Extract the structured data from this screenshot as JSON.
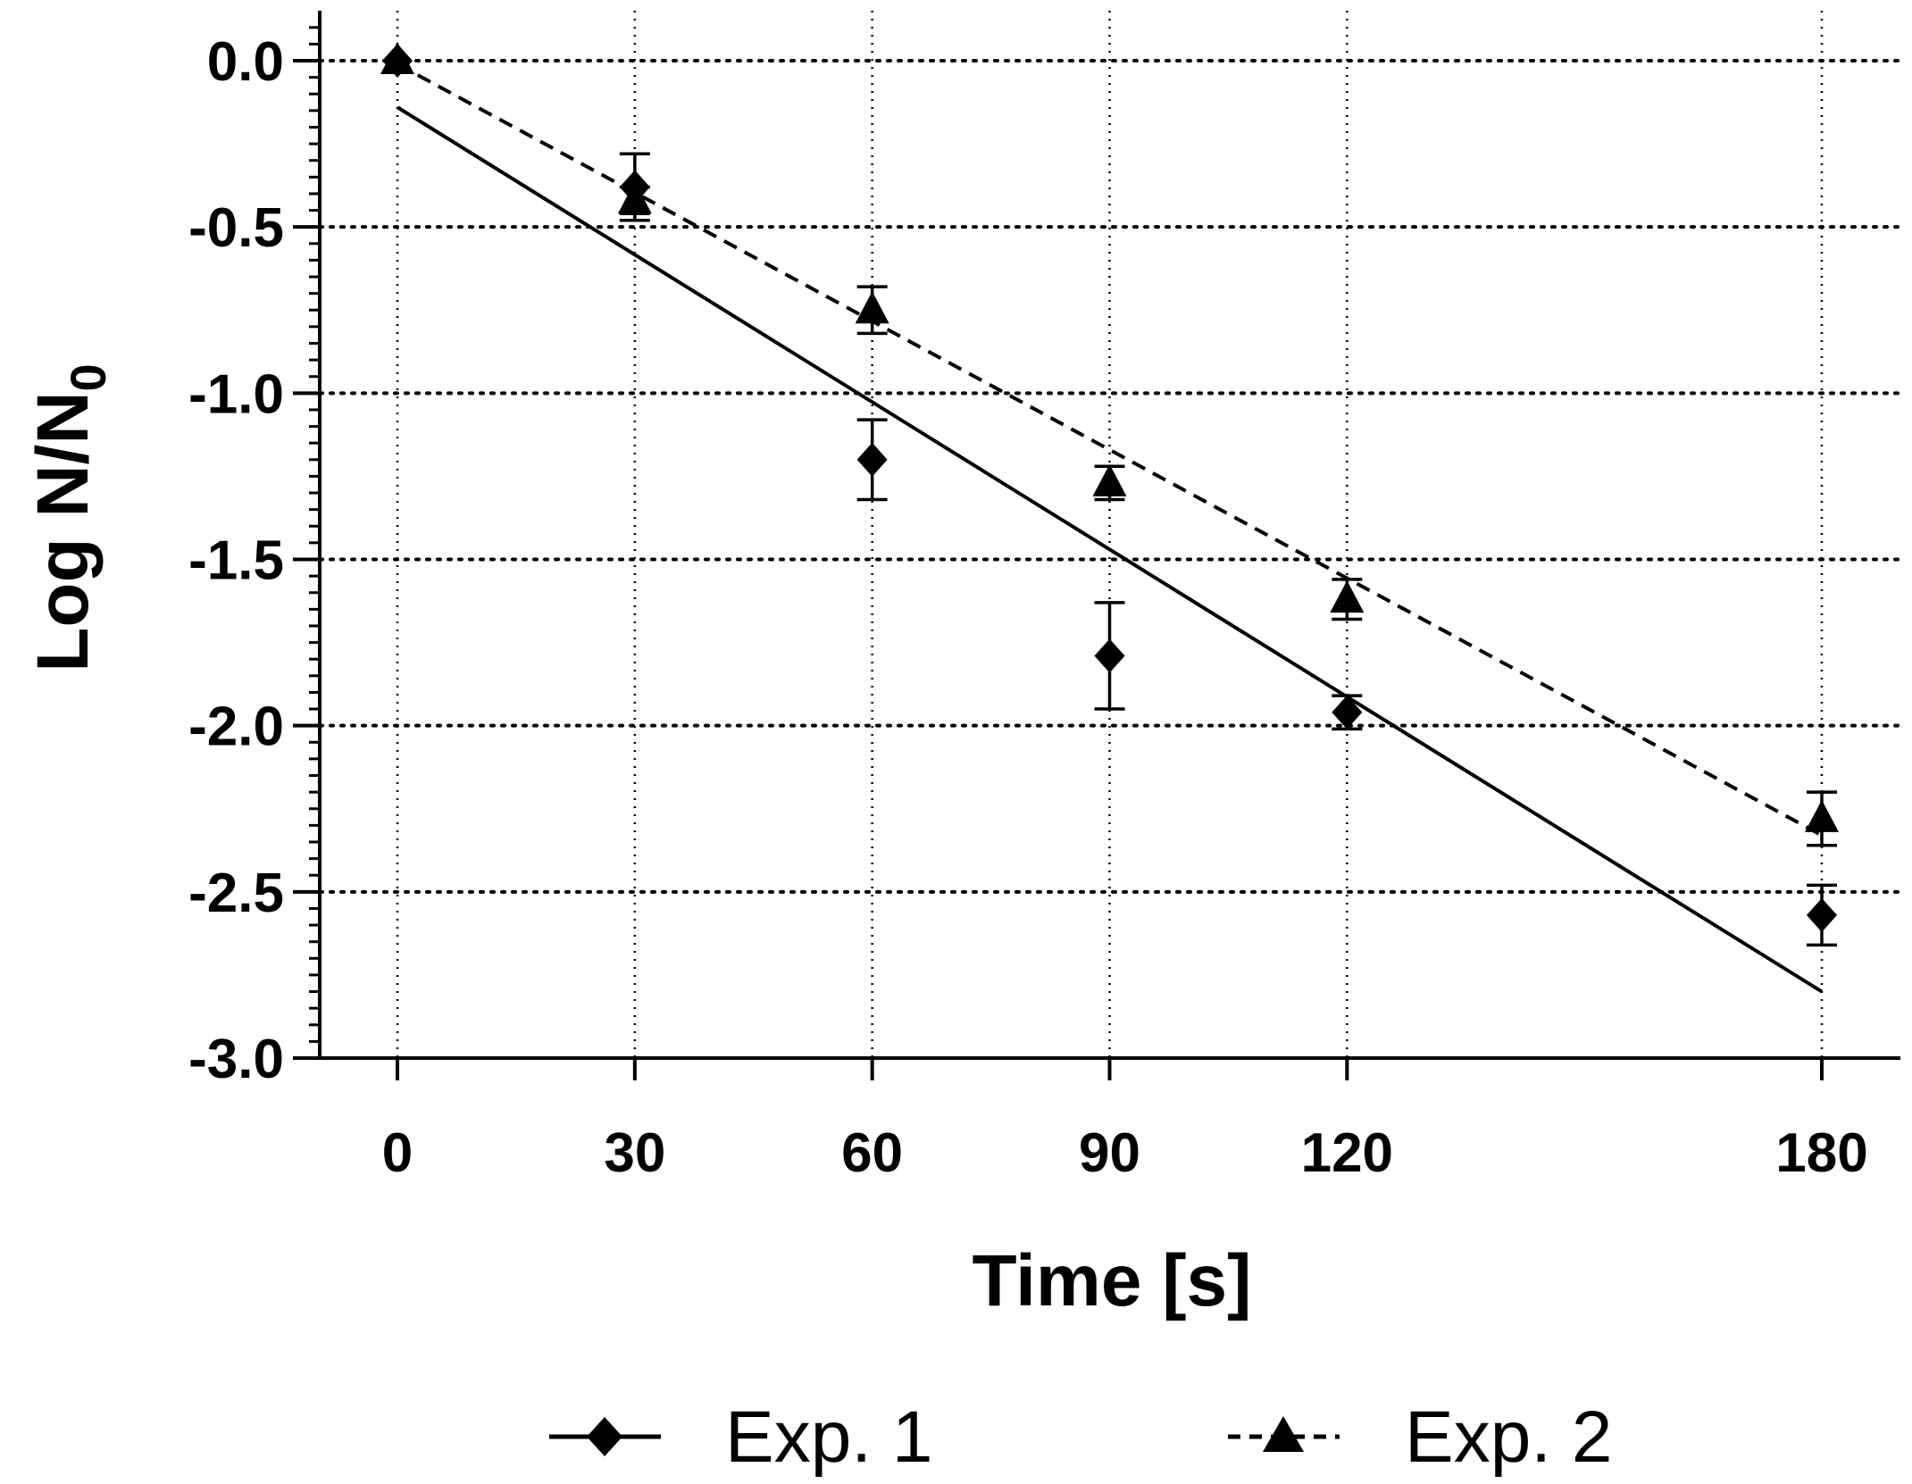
{
  "chart_data": {
    "type": "scatter",
    "title": "",
    "xlabel": "Time [s]",
    "ylabel": {
      "main": "Log N/N",
      "subscript": "0"
    },
    "xlim": [
      -15,
      185
    ],
    "ylim": [
      -3.0,
      0.15
    ],
    "x_ticks": [
      0,
      30,
      60,
      90,
      120,
      180
    ],
    "x_tick_labels": [
      "0",
      "30",
      "60",
      "90",
      "120",
      "180"
    ],
    "y_ticks": [
      0.0,
      -0.5,
      -1.0,
      -1.5,
      -2.0,
      -2.5,
      -3.0
    ],
    "y_tick_labels": [
      "0.0",
      "-0.5",
      "-1.0",
      "-1.5",
      "-2.0",
      "-2.5",
      "-3.0"
    ],
    "grid": true,
    "legend_position": "bottom",
    "series": [
      {
        "name": "Exp. 1",
        "marker": "diamond",
        "line_style": "solid",
        "x": [
          0,
          30,
          60,
          90,
          120,
          180
        ],
        "values": [
          0.0,
          -0.38,
          -1.2,
          -1.79,
          -1.96,
          -2.57
        ],
        "errors": [
          0.0,
          0.1,
          0.12,
          0.16,
          0.05,
          0.09
        ],
        "fit": {
          "x": [
            0,
            180
          ],
          "y": [
            -0.14,
            -2.8
          ]
        }
      },
      {
        "name": "Exp. 2",
        "marker": "triangle",
        "line_style": "dashed",
        "x": [
          0,
          30,
          60,
          90,
          120,
          180
        ],
        "values": [
          0.0,
          -0.42,
          -0.75,
          -1.27,
          -1.62,
          -2.28
        ],
        "errors": [
          0.0,
          0.04,
          0.07,
          0.05,
          0.06,
          0.08
        ],
        "fit": {
          "x": [
            0,
            180
          ],
          "y": [
            -0.01,
            -2.33
          ]
        }
      }
    ]
  }
}
